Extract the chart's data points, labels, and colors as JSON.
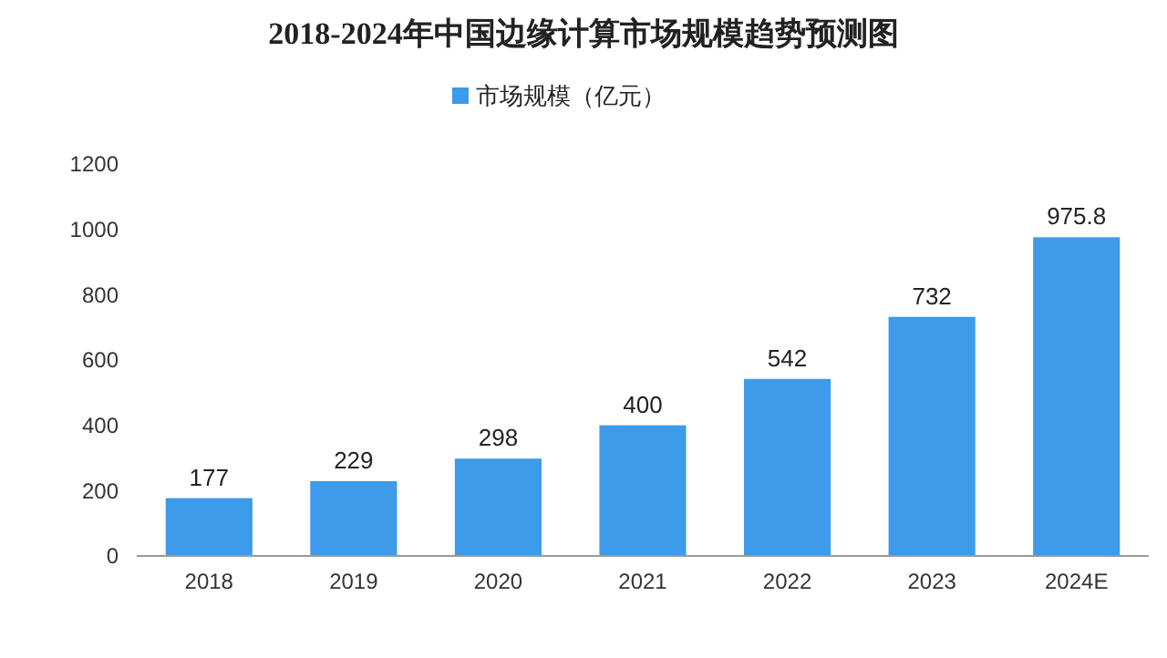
{
  "chart_data": {
    "type": "bar",
    "title": "2018-2024年中国边缘计算市场规模趋势预测图",
    "categories": [
      "2018",
      "2019",
      "2020",
      "2021",
      "2022",
      "2023",
      "2024E"
    ],
    "series": [
      {
        "name": "市场规模（亿元）",
        "color": "#3d9be9",
        "values": [
          177,
          229,
          298,
          400,
          542,
          732,
          975.8
        ]
      }
    ],
    "ylim": [
      0,
      1200
    ],
    "yticks": [
      0,
      200,
      400,
      600,
      800,
      1000,
      1200
    ],
    "grid": false,
    "legend": "top",
    "data_labels": true
  }
}
